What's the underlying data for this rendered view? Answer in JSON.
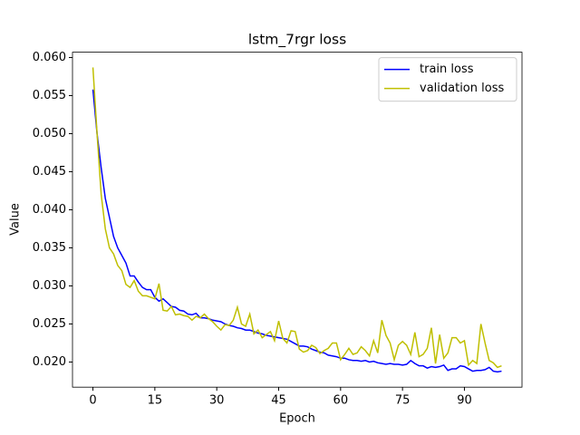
{
  "chart_data": {
    "type": "line",
    "title": "lstm_7rgr loss",
    "xlabel": "Epoch",
    "ylabel": "Value",
    "x": [
      0,
      1,
      2,
      3,
      4,
      5,
      6,
      7,
      8,
      9,
      10,
      11,
      12,
      13,
      14,
      15,
      16,
      17,
      18,
      19,
      20,
      21,
      22,
      23,
      24,
      25,
      26,
      27,
      28,
      29,
      30,
      31,
      32,
      33,
      34,
      35,
      36,
      37,
      38,
      39,
      40,
      41,
      42,
      43,
      44,
      45,
      46,
      47,
      48,
      49,
      50,
      51,
      52,
      53,
      54,
      55,
      56,
      57,
      58,
      59,
      60,
      61,
      62,
      63,
      64,
      65,
      66,
      67,
      68,
      69,
      70,
      71,
      72,
      73,
      74,
      75,
      76,
      77,
      78,
      79,
      80,
      81,
      82,
      83,
      84,
      85,
      86,
      87,
      88,
      89,
      90,
      91,
      92,
      93,
      94,
      95,
      96,
      97,
      98,
      99
    ],
    "series": [
      {
        "name": "train loss",
        "color": "#0000ff",
        "values": [
          0.0558,
          0.05,
          0.0455,
          0.0415,
          0.039,
          0.0365,
          0.035,
          0.034,
          0.033,
          0.0313,
          0.0313,
          0.0305,
          0.0298,
          0.0295,
          0.0295,
          0.0285,
          0.028,
          0.0283,
          0.0278,
          0.0273,
          0.0272,
          0.0268,
          0.0267,
          0.0263,
          0.0262,
          0.0264,
          0.0258,
          0.0258,
          0.0257,
          0.0255,
          0.0254,
          0.0253,
          0.025,
          0.0248,
          0.0247,
          0.0245,
          0.0244,
          0.0242,
          0.0242,
          0.024,
          0.0238,
          0.0237,
          0.0235,
          0.0234,
          0.0233,
          0.0232,
          0.0231,
          0.023,
          0.0227,
          0.0224,
          0.0221,
          0.0221,
          0.022,
          0.0217,
          0.0215,
          0.0213,
          0.0212,
          0.0209,
          0.0208,
          0.0207,
          0.0205,
          0.0205,
          0.0203,
          0.0202,
          0.0202,
          0.0201,
          0.0202,
          0.02,
          0.0201,
          0.0199,
          0.0198,
          0.0197,
          0.0198,
          0.0197,
          0.0197,
          0.0196,
          0.0197,
          0.0202,
          0.0198,
          0.0195,
          0.0195,
          0.0192,
          0.0194,
          0.0193,
          0.0194,
          0.0196,
          0.0189,
          0.0191,
          0.0191,
          0.0195,
          0.0194,
          0.0191,
          0.0188,
          0.0189,
          0.0189,
          0.019,
          0.0193,
          0.0188,
          0.0187,
          0.0188
        ]
      },
      {
        "name": "validation loss",
        "color": "#bfbf00",
        "values": [
          0.0587,
          0.05,
          0.042,
          0.0375,
          0.035,
          0.0342,
          0.0327,
          0.032,
          0.0302,
          0.0298,
          0.0307,
          0.0293,
          0.0287,
          0.0287,
          0.0285,
          0.0283,
          0.0303,
          0.0268,
          0.0267,
          0.0273,
          0.0262,
          0.0263,
          0.0261,
          0.026,
          0.0255,
          0.026,
          0.0258,
          0.0263,
          0.0257,
          0.0253,
          0.0247,
          0.0242,
          0.0249,
          0.0248,
          0.0255,
          0.0272,
          0.025,
          0.0247,
          0.0263,
          0.0237,
          0.0242,
          0.0232,
          0.0236,
          0.024,
          0.0228,
          0.0254,
          0.0231,
          0.0225,
          0.0241,
          0.024,
          0.0217,
          0.0213,
          0.0215,
          0.0222,
          0.0219,
          0.0211,
          0.0215,
          0.0218,
          0.0225,
          0.0225,
          0.0203,
          0.021,
          0.0218,
          0.021,
          0.0212,
          0.022,
          0.0215,
          0.0208,
          0.0228,
          0.0212,
          0.0255,
          0.0235,
          0.0225,
          0.0203,
          0.0222,
          0.0227,
          0.0222,
          0.021,
          0.0239,
          0.0207,
          0.021,
          0.0218,
          0.0245,
          0.0198,
          0.0236,
          0.0205,
          0.0212,
          0.0232,
          0.0232,
          0.0225,
          0.0228,
          0.0196,
          0.0202,
          0.0198,
          0.025,
          0.0225,
          0.0202,
          0.0199,
          0.0193,
          0.0195
        ]
      }
    ],
    "xlim": [
      -4.95,
      103.95
    ],
    "xticks": [
      0,
      15,
      30,
      45,
      60,
      75,
      90
    ],
    "ylim": [
      0.0167,
      0.0607
    ],
    "yticks": [
      {
        "value": 0.02,
        "label": "0.020"
      },
      {
        "value": 0.025,
        "label": "0.025"
      },
      {
        "value": 0.03,
        "label": "0.030"
      },
      {
        "value": 0.035,
        "label": "0.035"
      },
      {
        "value": 0.04,
        "label": "0.040"
      },
      {
        "value": 0.045,
        "label": "0.045"
      },
      {
        "value": 0.05,
        "label": "0.050"
      },
      {
        "value": 0.055,
        "label": "0.055"
      },
      {
        "value": 0.06,
        "label": "0.060"
      }
    ],
    "legend": "upper right"
  }
}
